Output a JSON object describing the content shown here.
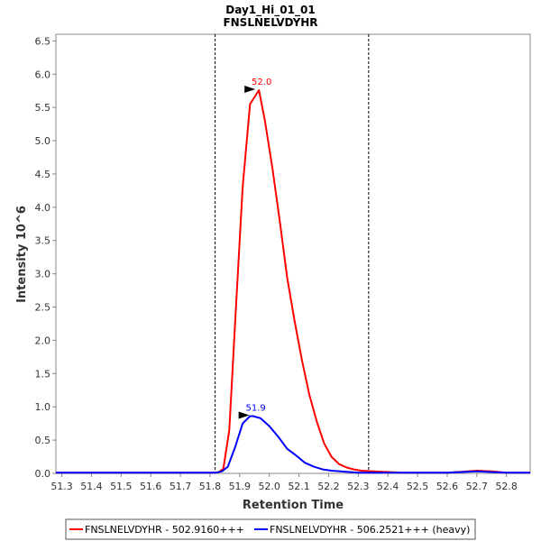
{
  "chart_data": {
    "type": "line",
    "title": "Day1_Hi_01_01",
    "subtitle": "FNSLNELVDYHR",
    "xlabel": "Retention Time",
    "ylabel": "Intensity 10^6",
    "xlim": [
      51.28,
      52.88
    ],
    "ylim": [
      0,
      6.6
    ],
    "xticks": [
      "51.3",
      "51.4",
      "51.5",
      "51.6",
      "51.7",
      "51.8",
      "51.9",
      "52.0",
      "52.1",
      "52.2",
      "52.3",
      "52.4",
      "52.5",
      "52.6",
      "52.7",
      "52.8"
    ],
    "yticks": [
      "0.0",
      "0.5",
      "1.0",
      "1.5",
      "2.0",
      "2.5",
      "3.0",
      "3.5",
      "4.0",
      "4.5",
      "5.0",
      "5.5",
      "6.0",
      "6.5"
    ],
    "boundaries": [
      51.817,
      52.335
    ],
    "grid": false,
    "legend_position": "bottom",
    "series": [
      {
        "name": "FNSLNELVDYHR - 502.9160+++",
        "color": "#ff0000",
        "peak_label": "52.0",
        "peak_x": 51.965,
        "peak_y": 5.76,
        "x": [
          51.28,
          51.81,
          51.83,
          51.845,
          51.865,
          51.885,
          51.91,
          51.935,
          51.965,
          51.985,
          52.01,
          52.035,
          52.06,
          52.085,
          52.11,
          52.135,
          52.16,
          52.185,
          52.21,
          52.235,
          52.26,
          52.285,
          52.31,
          52.35,
          52.4,
          52.45,
          52.6,
          52.65,
          52.7,
          52.75,
          52.8,
          52.88
        ],
        "y": [
          0.01,
          0.01,
          0.02,
          0.07,
          0.65,
          2.3,
          4.3,
          5.55,
          5.76,
          5.3,
          4.6,
          3.8,
          2.95,
          2.3,
          1.7,
          1.18,
          0.78,
          0.45,
          0.25,
          0.14,
          0.09,
          0.06,
          0.04,
          0.03,
          0.02,
          0.01,
          0.01,
          0.025,
          0.04,
          0.03,
          0.01,
          0.01
        ]
      },
      {
        "name": "FNSLNELVDYHR - 506.2521+++ (heavy)",
        "color": "#0000ff",
        "peak_label": "51.9",
        "peak_x": 51.945,
        "peak_y": 0.86,
        "x": [
          51.28,
          51.82,
          51.84,
          51.86,
          51.885,
          51.91,
          51.935,
          51.945,
          51.97,
          52.0,
          52.03,
          52.06,
          52.09,
          52.12,
          52.15,
          52.18,
          52.21,
          52.24,
          52.27,
          52.3,
          52.35,
          52.6,
          52.65,
          52.7,
          52.75,
          52.8,
          52.88
        ],
        "y": [
          0.01,
          0.01,
          0.03,
          0.1,
          0.4,
          0.75,
          0.86,
          0.86,
          0.83,
          0.71,
          0.55,
          0.37,
          0.27,
          0.16,
          0.1,
          0.06,
          0.04,
          0.03,
          0.02,
          0.01,
          0.01,
          0.01,
          0.02,
          0.03,
          0.02,
          0.01,
          0.01
        ]
      }
    ]
  }
}
